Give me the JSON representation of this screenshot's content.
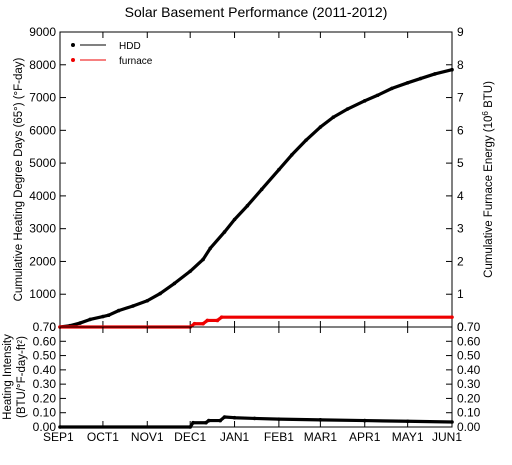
{
  "chart_data": [
    {
      "type": "line",
      "title": "Solar Basement Performance (2011-2012)",
      "ylabel": "Cumulative Heating Degree Days (65°) (°F-day)",
      "y2label_html": "Cumulative Furnace Energy (10<tspan baseline-shift='super' font-size='8'>6</tspan> BTU)",
      "ylim": [
        0,
        9000
      ],
      "yticks": [
        "0",
        "1000",
        "2000",
        "3000",
        "4000",
        "5000",
        "6000",
        "7000",
        "8000",
        "9000"
      ],
      "y2lim": [
        0,
        9
      ],
      "y2ticks": [
        "0",
        "1",
        "2",
        "3",
        "4",
        "5",
        "6",
        "7",
        "8",
        "9"
      ],
      "legend_position": "top-left",
      "series": [
        {
          "name": "HDD",
          "axis": "left",
          "color": "#000000",
          "points": [
            [
              "2011-09-01",
              0
            ],
            [
              "2011-09-08",
              40
            ],
            [
              "2011-09-15",
              120
            ],
            [
              "2011-09-22",
              230
            ],
            [
              "2011-10-01",
              320
            ],
            [
              "2011-10-05",
              360
            ],
            [
              "2011-10-12",
              500
            ],
            [
              "2011-10-22",
              640
            ],
            [
              "2011-11-01",
              800
            ],
            [
              "2011-11-10",
              1020
            ],
            [
              "2011-11-20",
              1330
            ],
            [
              "2011-12-01",
              1700
            ],
            [
              "2011-12-10",
              2060
            ],
            [
              "2011-12-15",
              2400
            ],
            [
              "2011-12-25",
              2900
            ],
            [
              "2012-01-01",
              3280
            ],
            [
              "2012-01-10",
              3700
            ],
            [
              "2012-01-20",
              4200
            ],
            [
              "2012-02-01",
              4800
            ],
            [
              "2012-02-10",
              5250
            ],
            [
              "2012-02-20",
              5700
            ],
            [
              "2012-03-01",
              6100
            ],
            [
              "2012-03-10",
              6400
            ],
            [
              "2012-03-20",
              6650
            ],
            [
              "2012-04-01",
              6900
            ],
            [
              "2012-04-10",
              7070
            ],
            [
              "2012-04-20",
              7280
            ],
            [
              "2012-05-01",
              7450
            ],
            [
              "2012-05-10",
              7580
            ],
            [
              "2012-05-20",
              7720
            ],
            [
              "2012-06-01",
              7850
            ]
          ]
        },
        {
          "name": "furnace",
          "axis": "right",
          "color": "#ee0000",
          "points": [
            [
              "2011-09-01",
              0
            ],
            [
              "2011-12-01",
              0
            ],
            [
              "2011-12-04",
              0.1
            ],
            [
              "2011-12-10",
              0.1
            ],
            [
              "2011-12-13",
              0.2
            ],
            [
              "2011-12-20",
              0.2
            ],
            [
              "2011-12-23",
              0.3
            ],
            [
              "2012-06-01",
              0.3
            ]
          ]
        }
      ]
    },
    {
      "type": "line",
      "ylabel_line1": "Heating Intensity",
      "ylabel_line2_html": "(BTU/°F-day-ft<tspan baseline-shift='super' font-size='7'>2</tspan>)",
      "ylim": [
        0,
        0.7
      ],
      "yticks": [
        "0.00",
        "0.10",
        "0.20",
        "0.30",
        "0.40",
        "0.50",
        "0.60",
        "0.70"
      ],
      "xlim": [
        "2011-09-01",
        "2012-06-01"
      ],
      "xticks": [
        {
          "date": "2011-09-01",
          "label": "SEP1"
        },
        {
          "date": "2011-10-01",
          "label": "OCT1"
        },
        {
          "date": "2011-11-01",
          "label": "NOV1"
        },
        {
          "date": "2011-12-01",
          "label": "DEC1"
        },
        {
          "date": "2012-01-01",
          "label": "JAN1"
        },
        {
          "date": "2012-02-01",
          "label": "FEB1"
        },
        {
          "date": "2012-03-01",
          "label": "MAR1"
        },
        {
          "date": "2012-04-01",
          "label": "APR1"
        },
        {
          "date": "2012-05-01",
          "label": "MAY1"
        },
        {
          "date": "2012-06-01",
          "label": "JUN1"
        }
      ],
      "series": [
        {
          "axis": "left",
          "color": "#000000",
          "points": [
            [
              "2011-09-01",
              0
            ],
            [
              "2011-12-01",
              0
            ],
            [
              "2011-12-03",
              0.03
            ],
            [
              "2011-12-12",
              0.03
            ],
            [
              "2011-12-14",
              0.045
            ],
            [
              "2011-12-22",
              0.045
            ],
            [
              "2011-12-25",
              0.07
            ],
            [
              "2012-01-01",
              0.065
            ],
            [
              "2012-01-15",
              0.06
            ],
            [
              "2012-02-01",
              0.055
            ],
            [
              "2012-03-01",
              0.05
            ],
            [
              "2012-04-01",
              0.045
            ],
            [
              "2012-05-01",
              0.04
            ],
            [
              "2012-06-01",
              0.035
            ]
          ]
        }
      ]
    }
  ]
}
